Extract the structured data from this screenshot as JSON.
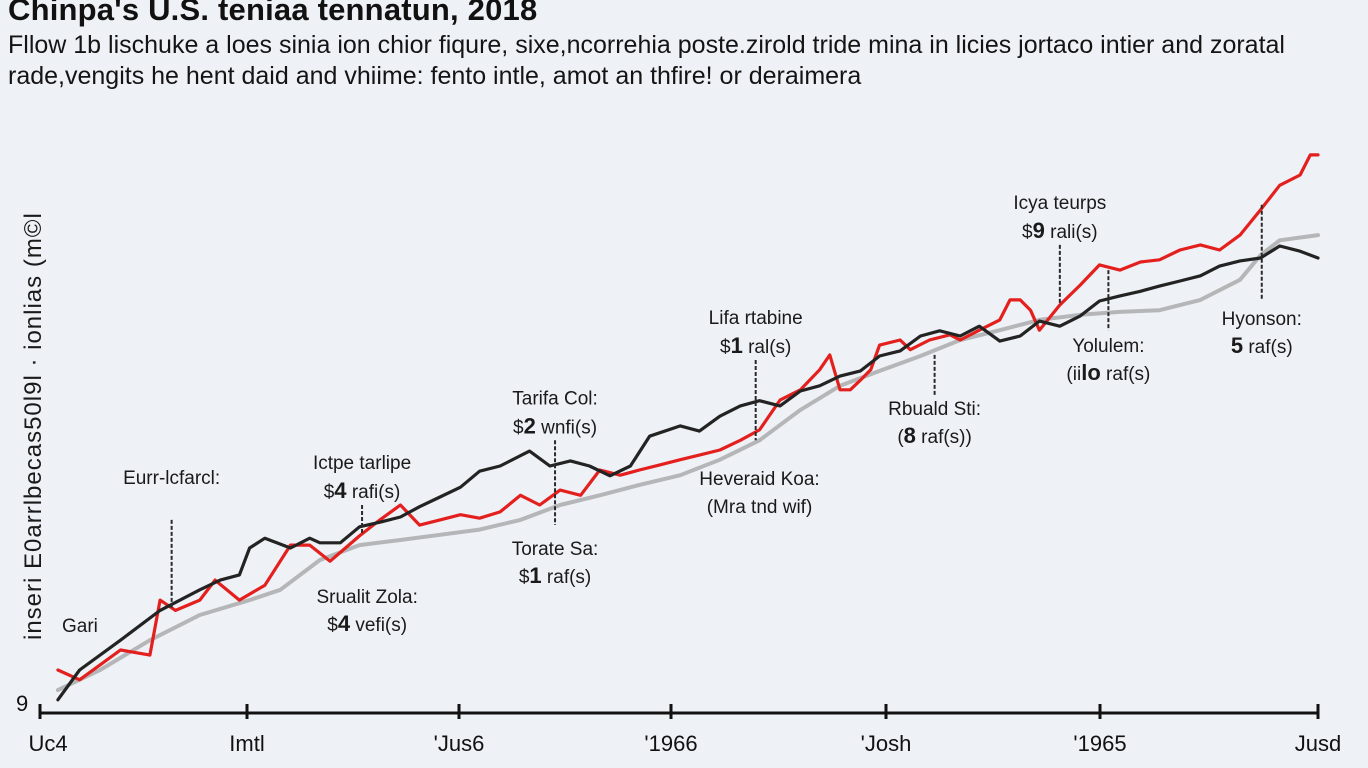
{
  "chart_data": {
    "type": "line",
    "title": "Chinpa's U.S. teniaa tennatun, 2018",
    "subtitle": "Fllow 1b lischuke a loes sinia ion chior fiqure, sixe,ncorrehia poste.zirold tride mina in licies jortaco intier and zoratal rade,vengits he hent daid and vhiime: fento intle, amot an thfire! or deraimera",
    "xlabel": "",
    "ylabel": "inseri E0arrlbecas50l9l  ·  ionlias  (m©l",
    "y_axis_origin_label": "9",
    "x_ticks": [
      "Uc4",
      "Imtl",
      "'Jus6",
      "'1966",
      "'Josh",
      "'1965",
      "Jusd"
    ],
    "x_range": [
      0,
      100
    ],
    "y_range": [
      0,
      100
    ],
    "grid": false,
    "legend": "none",
    "series": [
      {
        "name": "red-series",
        "color": "#e4201f",
        "x": [
          1.4,
          3.1,
          6.3,
          8.6,
          9.4,
          10.6,
          12.5,
          13.7,
          15.6,
          17.6,
          19.6,
          21.1,
          22.7,
          25.0,
          26.6,
          28.2,
          29.7,
          31.3,
          32.9,
          34.4,
          36.0,
          37.6,
          39.1,
          40.7,
          42.3,
          43.8,
          45.4,
          46.9,
          48.5,
          50.1,
          51.6,
          53.2,
          54.8,
          56.3,
          57.9,
          59.5,
          61.0,
          61.8,
          62.6,
          63.4,
          64.2,
          65.0,
          65.7,
          67.3,
          68.1,
          69.6,
          71.2,
          72.0,
          73.5,
          75.1,
          75.9,
          76.7,
          77.5,
          78.2,
          79.8,
          81.4,
          82.9,
          84.5,
          86.1,
          87.6,
          89.2,
          90.8,
          92.3,
          93.9,
          95.5,
          97.0,
          98.6,
          99.4,
          100
        ],
        "y": [
          7.5,
          5.8,
          11.0,
          10.1,
          19.7,
          17.9,
          19.7,
          23.2,
          19.7,
          22.3,
          29.3,
          29.3,
          26.5,
          30.9,
          33.7,
          36.3,
          32.8,
          33.7,
          34.6,
          34.0,
          35.1,
          38.0,
          36.3,
          38.9,
          38.0,
          42.4,
          41.5,
          42.4,
          43.3,
          44.2,
          45.0,
          45.9,
          47.6,
          49.4,
          54.6,
          56.4,
          59.9,
          62.5,
          56.4,
          56.4,
          58.1,
          59.9,
          64.2,
          65.1,
          63.4,
          65.1,
          66.0,
          65.1,
          66.8,
          68.6,
          72.1,
          72.1,
          70.3,
          66.8,
          71.2,
          74.7,
          78.2,
          77.3,
          78.7,
          79.1,
          80.8,
          81.7,
          80.8,
          83.4,
          87.8,
          92.1,
          93.9,
          97.4,
          97.4
        ]
      },
      {
        "name": "black-series",
        "color": "#232323",
        "x": [
          1.4,
          3.1,
          6.3,
          9.4,
          12.5,
          14.1,
          15.6,
          16.4,
          17.6,
          19.6,
          21.1,
          21.9,
          23.5,
          25.0,
          26.6,
          28.2,
          29.7,
          31.3,
          32.9,
          34.4,
          36.0,
          38.3,
          39.9,
          41.5,
          43.0,
          44.6,
          46.2,
          47.7,
          50.1,
          51.6,
          53.2,
          54.8,
          56.3,
          57.9,
          59.5,
          61.0,
          62.6,
          64.2,
          65.7,
          67.3,
          68.9,
          70.4,
          72.0,
          73.5,
          75.1,
          76.7,
          78.2,
          79.8,
          81.4,
          82.9,
          84.5,
          86.1,
          87.6,
          89.2,
          90.8,
          92.3,
          93.9,
          95.5,
          97.0,
          98.6,
          100
        ],
        "y": [
          2.3,
          7.5,
          12.7,
          17.9,
          21.5,
          23.2,
          24.1,
          28.8,
          30.5,
          28.8,
          30.5,
          29.7,
          29.7,
          32.5,
          33.3,
          34.2,
          36.0,
          37.7,
          39.4,
          42.2,
          43.1,
          45.7,
          43.1,
          44.0,
          43.1,
          41.4,
          43.1,
          48.3,
          50.1,
          49.2,
          51.8,
          53.6,
          54.5,
          53.6,
          56.2,
          57.1,
          58.8,
          59.7,
          62.3,
          63.2,
          65.8,
          66.7,
          65.8,
          67.5,
          64.9,
          65.8,
          68.4,
          67.5,
          69.3,
          71.9,
          72.8,
          73.6,
          74.5,
          75.4,
          76.3,
          78.0,
          78.9,
          79.4,
          81.5,
          80.6,
          79.4
        ]
      },
      {
        "name": "gray-series",
        "color": "#b4b6b8",
        "x": [
          1.4,
          4.7,
          8.6,
          12.5,
          16.4,
          18.8,
          21.9,
          25.0,
          28.2,
          31.3,
          34.4,
          37.6,
          40.7,
          43.8,
          46.9,
          50.1,
          53.2,
          56.3,
          59.5,
          62.6,
          65.7,
          68.9,
          72.0,
          75.1,
          78.2,
          81.4,
          84.5,
          87.6,
          90.8,
          93.9,
          95.5,
          97.0,
          100
        ],
        "y": [
          4.0,
          7.5,
          12.7,
          17.1,
          19.7,
          21.5,
          26.7,
          29.3,
          30.2,
          31.1,
          32.0,
          33.7,
          36.3,
          38.0,
          39.8,
          41.5,
          44.2,
          47.6,
          52.9,
          57.1,
          59.7,
          62.3,
          65.1,
          66.8,
          68.6,
          69.5,
          70.0,
          70.3,
          72.1,
          75.6,
          79.9,
          82.5,
          83.4
        ]
      }
    ],
    "annotations": [
      {
        "title": "Eurr-lcfarcl:",
        "value_prefix": "",
        "value_num": "",
        "value_suffix": "",
        "x": 10.3,
        "y_line_top": 33.7,
        "y_line_bottom": 18.0,
        "label_pos": "above"
      },
      {
        "title": "Gari",
        "value_prefix": "",
        "value_num": "",
        "value_suffix": "",
        "x": 2.0,
        "label_pos": "text-only"
      },
      {
        "title": "Ictpe tarlipe",
        "value_prefix": "$",
        "value_num": "4",
        "value_suffix": " rafi(s)",
        "x": 25.2,
        "y_line_top": 36.3,
        "y_line_bottom": 31.1,
        "label_pos": "above"
      },
      {
        "title": "Srualit Zola:",
        "value_prefix": "$",
        "value_num": "4",
        "value_suffix": " vefi(s)",
        "x": 25.6,
        "label_pos": "below"
      },
      {
        "title": "Tarifa Col:",
        "value_prefix": "$",
        "value_num": "2",
        "value_suffix": " wnfi(s)",
        "x": 40.3,
        "y_line_top": 47.6,
        "y_line_bottom": 32.8,
        "label_pos": "above"
      },
      {
        "title": "Torate Sa:",
        "value_prefix": "$",
        "value_num": "1",
        "value_suffix": " raf(s)",
        "x": 40.3,
        "label_pos": "below"
      },
      {
        "title": "Lifa rtabine",
        "value_prefix": "$",
        "value_num": "1",
        "value_suffix": " ral(s)",
        "x": 56.0,
        "y_line_top": 61.6,
        "y_line_bottom": 47.6,
        "label_pos": "above"
      },
      {
        "title": "Heveraid Koa:",
        "value_prefix": "(",
        "value_num": "",
        "value_suffix": "Mra tnd wif)",
        "x": 56.3,
        "label_pos": "below"
      },
      {
        "title": "Rbuald Sti:",
        "value_prefix": "(",
        "value_num": "8",
        "value_suffix": " raf(s))",
        "x": 70.0,
        "y_line_top": 62.5,
        "y_line_bottom": 55.5,
        "label_pos": "below"
      },
      {
        "title": "Icya teurps",
        "value_prefix": "$",
        "value_num": "9",
        "value_suffix": " rali(s)",
        "x": 79.8,
        "y_line_top": 81.7,
        "y_line_bottom": 71.2,
        "label_pos": "above"
      },
      {
        "title": "Yolulem:",
        "value_prefix": "(ii",
        "value_num": "lo",
        "value_suffix": " raf(s)",
        "x": 83.6,
        "y_line_top": 77.3,
        "y_line_bottom": 66.8,
        "label_pos": "below"
      },
      {
        "title": "Hyonson:",
        "value_prefix": "",
        "value_num": "5",
        "value_suffix": " raf(s)",
        "x": 95.6,
        "y_line_top": 88.7,
        "y_line_bottom": 72.1,
        "label_pos": "below"
      }
    ]
  }
}
